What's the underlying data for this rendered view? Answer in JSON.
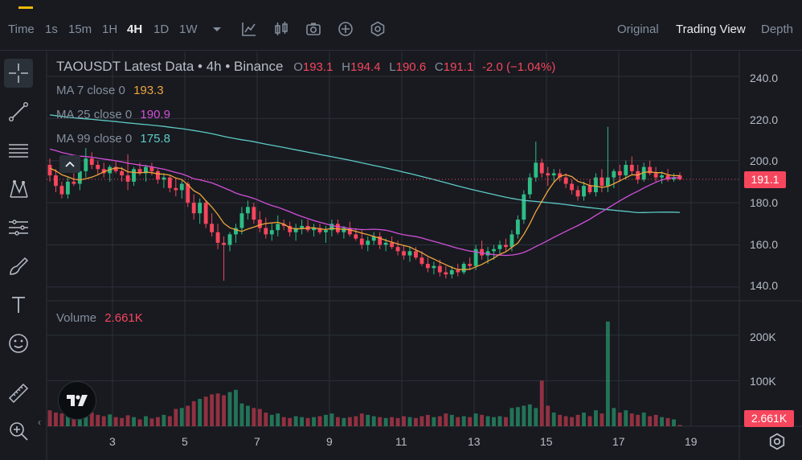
{
  "toolbar": {
    "time_label": "Time",
    "intervals": [
      "1s",
      "15m",
      "1H",
      "4H",
      "1D",
      "1W"
    ],
    "active_interval": "4H",
    "views": [
      "Original",
      "Trading View",
      "Depth"
    ],
    "active_view": "Trading View",
    "icons": [
      "chevron-down-icon",
      "indicators-icon",
      "candle-type-icon",
      "camera-icon",
      "add-icon",
      "settings-icon"
    ]
  },
  "sidebar": {
    "tools": [
      "crosshair-icon",
      "trend-line-icon",
      "fib-lines-icon",
      "pattern-icon",
      "measure-lines-icon",
      "brush-icon",
      "text-icon",
      "emoji-icon",
      "ruler-icon",
      "zoom-icon"
    ]
  },
  "chart": {
    "symbol": "TAOUSDT Latest Data • 4h • Binance",
    "ohlc": {
      "o_label": "O",
      "o": "193.1",
      "h_label": "H",
      "h": "194.4",
      "l_label": "L",
      "l": "190.6",
      "c_label": "C",
      "c": "191.1",
      "change": "-2.0 (−1.04%)"
    },
    "ma": [
      {
        "label": "MA 7 close 0",
        "value": "193.3",
        "color": "#f0a53c"
      },
      {
        "label": "MA 25 close 0",
        "value": "190.9",
        "color": "#d14fd8"
      },
      {
        "label": "MA 99 close 0",
        "value": "175.8",
        "color": "#5dcac5"
      }
    ],
    "volume_label": "Volume",
    "volume_value": "2.661K",
    "last_price_tag": "191.1",
    "volume_tag": "2.661K",
    "price_axis": [
      "240.0",
      "220.0",
      "200.0",
      "180.0",
      "160.0",
      "140.0"
    ],
    "volume_axis": [
      "200K",
      "100K"
    ],
    "x_axis": [
      "3",
      "5",
      "7",
      "9",
      "11",
      "13",
      "15",
      "17",
      "19"
    ],
    "colors": {
      "up": "#2ebd85",
      "down": "#f6465d",
      "background": "#181a20",
      "grid": "#2b3139"
    }
  },
  "chart_data": {
    "type": "candlestick",
    "title": "TAOUSDT Latest Data • 4h • Binance",
    "x_ticks": [
      "3",
      "5",
      "7",
      "9",
      "11",
      "13",
      "15",
      "17",
      "19"
    ],
    "price_ylim": [
      135,
      248
    ],
    "volume_ylim": [
      0,
      265
    ],
    "volume_units": "K",
    "candles": [
      [
        198,
        201,
        190,
        193,
        35
      ],
      [
        193,
        196,
        185,
        188,
        30
      ],
      [
        188,
        190,
        182,
        184,
        28
      ],
      [
        184,
        192,
        182,
        190,
        35
      ],
      [
        190,
        194,
        188,
        189,
        22
      ],
      [
        189,
        197,
        186,
        195,
        40
      ],
      [
        195,
        206,
        192,
        201,
        50
      ],
      [
        201,
        204,
        196,
        198,
        30
      ],
      [
        198,
        200,
        193,
        196,
        25
      ],
      [
        196,
        199,
        192,
        194,
        22
      ],
      [
        194,
        198,
        190,
        197,
        26
      ],
      [
        197,
        200,
        194,
        195,
        20
      ],
      [
        195,
        197,
        190,
        193,
        18
      ],
      [
        193,
        203,
        186,
        190,
        24
      ],
      [
        190,
        197,
        188,
        196,
        20
      ],
      [
        196,
        199,
        193,
        194,
        15
      ],
      [
        194,
        198,
        190,
        197,
        22
      ],
      [
        197,
        199,
        193,
        195,
        17
      ],
      [
        195,
        196,
        189,
        191,
        20
      ],
      [
        191,
        194,
        187,
        192,
        25
      ],
      [
        192,
        193,
        185,
        187,
        22
      ],
      [
        187,
        192,
        183,
        186,
        38
      ],
      [
        186,
        191,
        182,
        189,
        40
      ],
      [
        189,
        190,
        178,
        180,
        45
      ],
      [
        180,
        184,
        172,
        175,
        55
      ],
      [
        175,
        182,
        170,
        180,
        60
      ],
      [
        180,
        181,
        168,
        170,
        65
      ],
      [
        170,
        175,
        164,
        166,
        70
      ],
      [
        166,
        170,
        158,
        161,
        72
      ],
      [
        161,
        164,
        143,
        160,
        68
      ],
      [
        160,
        166,
        157,
        165,
        75
      ],
      [
        165,
        170,
        161,
        168,
        80
      ],
      [
        168,
        178,
        165,
        175,
        50
      ],
      [
        175,
        181,
        172,
        178,
        45
      ],
      [
        178,
        180,
        170,
        172,
        40
      ],
      [
        172,
        176,
        166,
        168,
        38
      ],
      [
        168,
        173,
        163,
        165,
        30
      ],
      [
        165,
        170,
        162,
        167,
        25
      ],
      [
        167,
        174,
        164,
        170,
        28
      ],
      [
        170,
        172,
        167,
        169,
        20
      ],
      [
        169,
        171,
        164,
        166,
        18
      ],
      [
        166,
        170,
        162,
        168,
        22
      ],
      [
        168,
        172,
        165,
        169,
        20
      ],
      [
        169,
        172,
        166,
        167,
        18
      ],
      [
        167,
        170,
        164,
        168,
        20
      ],
      [
        168,
        170,
        165,
        166,
        22
      ],
      [
        166,
        169,
        161,
        167,
        25
      ],
      [
        167,
        172,
        164,
        170,
        28
      ],
      [
        170,
        172,
        165,
        166,
        20
      ],
      [
        166,
        169,
        163,
        168,
        18
      ],
      [
        168,
        171,
        164,
        165,
        20
      ],
      [
        165,
        168,
        162,
        163,
        22
      ],
      [
        163,
        167,
        158,
        160,
        28
      ],
      [
        160,
        164,
        157,
        162,
        25
      ],
      [
        162,
        166,
        160,
        164,
        22
      ],
      [
        164,
        166,
        158,
        160,
        20
      ],
      [
        160,
        163,
        157,
        161,
        18
      ],
      [
        161,
        164,
        158,
        159,
        20
      ],
      [
        159,
        162,
        155,
        157,
        18
      ],
      [
        157,
        160,
        153,
        155,
        22
      ],
      [
        155,
        159,
        152,
        157,
        20
      ],
      [
        157,
        159,
        153,
        154,
        18
      ],
      [
        154,
        157,
        150,
        151,
        22
      ],
      [
        151,
        154,
        147,
        149,
        25
      ],
      [
        149,
        152,
        146,
        150,
        20
      ],
      [
        150,
        153,
        145,
        147,
        22
      ],
      [
        147,
        150,
        144,
        146,
        28
      ],
      [
        146,
        150,
        144,
        148,
        25
      ],
      [
        148,
        151,
        145,
        147,
        20
      ],
      [
        147,
        152,
        146,
        151,
        22
      ],
      [
        151,
        154,
        148,
        150,
        20
      ],
      [
        150,
        160,
        148,
        158,
        28
      ],
      [
        158,
        162,
        153,
        155,
        25
      ],
      [
        155,
        159,
        151,
        157,
        22
      ],
      [
        157,
        160,
        153,
        158,
        20
      ],
      [
        158,
        162,
        156,
        160,
        22
      ],
      [
        160,
        163,
        157,
        159,
        20
      ],
      [
        159,
        167,
        157,
        165,
        40
      ],
      [
        165,
        174,
        163,
        172,
        42
      ],
      [
        172,
        186,
        170,
        184,
        45
      ],
      [
        184,
        194,
        182,
        192,
        48
      ],
      [
        192,
        209,
        190,
        199,
        40
      ],
      [
        199,
        201,
        192,
        194,
        100
      ],
      [
        194,
        197,
        188,
        193,
        45
      ],
      [
        193,
        196,
        190,
        194,
        30
      ],
      [
        194,
        196,
        190,
        192,
        25
      ],
      [
        192,
        194,
        187,
        189,
        22
      ],
      [
        189,
        191,
        184,
        186,
        20
      ],
      [
        186,
        188,
        181,
        183,
        25
      ],
      [
        183,
        190,
        181,
        188,
        30
      ],
      [
        188,
        191,
        184,
        185,
        22
      ],
      [
        185,
        194,
        183,
        192,
        35
      ],
      [
        192,
        196,
        185,
        188,
        28
      ],
      [
        188,
        216,
        185,
        192,
        230
      ],
      [
        192,
        196,
        187,
        195,
        40
      ],
      [
        195,
        198,
        190,
        193,
        30
      ],
      [
        193,
        200,
        191,
        198,
        35
      ],
      [
        198,
        202,
        193,
        195,
        28
      ],
      [
        195,
        198,
        189,
        191,
        25
      ],
      [
        191,
        199,
        190,
        197,
        30
      ],
      [
        197,
        200,
        193,
        194,
        22
      ],
      [
        194,
        197,
        190,
        192,
        25
      ],
      [
        192,
        195,
        189,
        193,
        20
      ],
      [
        193,
        196,
        190,
        191,
        18
      ],
      [
        191,
        194,
        190,
        192,
        15
      ],
      [
        193,
        194.4,
        190.6,
        191.1,
        2.661
      ]
    ]
  }
}
